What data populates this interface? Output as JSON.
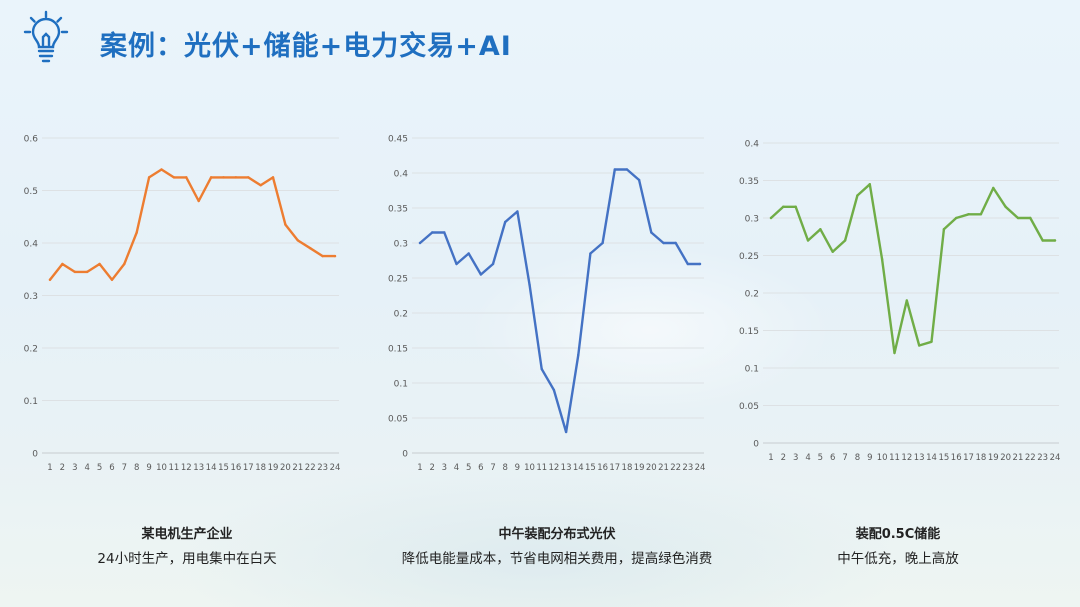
{
  "header": {
    "title": "案例：光伏+储能+电力交易+AI",
    "icon": "lightbulb-idea-icon"
  },
  "colors": {
    "title": "#1f6fc0",
    "series1": "#ed7d31",
    "series2": "#4472c4",
    "series3": "#70ad47"
  },
  "captions": [
    {
      "title": "某电机生产企业",
      "subtitle": "24小时生产，用电集中在白天"
    },
    {
      "title": "中午装配分布式光伏",
      "subtitle": "降低电能量成本，节省电网相关费用，提高绿色消费"
    },
    {
      "title": "装配0.5C储能",
      "subtitle": "中午低充，晚上高放"
    }
  ],
  "chart_data": [
    {
      "type": "line",
      "title": "",
      "xlabel": "",
      "ylabel": "",
      "grid": true,
      "legend": "none",
      "x": [
        "1",
        "2",
        "3",
        "4",
        "5",
        "6",
        "7",
        "8",
        "9",
        "10",
        "11",
        "12",
        "13",
        "14",
        "15",
        "16",
        "17",
        "18",
        "19",
        "20",
        "21",
        "22",
        "23",
        "24"
      ],
      "ylim": [
        0,
        0.6
      ],
      "yticks": [
        "0",
        "0.1",
        "0.2",
        "0.3",
        "0.4",
        "0.5",
        "0.6"
      ],
      "series": [
        {
          "color": "#ed7d31",
          "values": [
            0.33,
            0.36,
            0.345,
            0.345,
            0.36,
            0.33,
            0.36,
            0.42,
            0.525,
            0.54,
            0.525,
            0.525,
            0.48,
            0.525,
            0.525,
            0.525,
            0.525,
            0.51,
            0.525,
            0.435,
            0.405,
            0.39,
            0.375,
            0.375
          ]
        }
      ]
    },
    {
      "type": "line",
      "title": "",
      "xlabel": "",
      "ylabel": "",
      "grid": true,
      "legend": "none",
      "x": [
        "1",
        "2",
        "3",
        "4",
        "5",
        "6",
        "7",
        "8",
        "9",
        "10",
        "11",
        "12",
        "13",
        "14",
        "15",
        "16",
        "17",
        "18",
        "19",
        "20",
        "21",
        "22",
        "23",
        "24"
      ],
      "ylim": [
        0,
        0.45
      ],
      "yticks": [
        "0",
        "0.05",
        "0.1",
        "0.15",
        "0.2",
        "0.25",
        "0.3",
        "0.35",
        "0.4",
        "0.45"
      ],
      "series": [
        {
          "color": "#4472c4",
          "values": [
            0.3,
            0.315,
            0.315,
            0.27,
            0.285,
            0.255,
            0.27,
            0.33,
            0.345,
            0.24,
            0.12,
            0.09,
            0.03,
            0.14,
            0.285,
            0.3,
            0.405,
            0.405,
            0.39,
            0.315,
            0.3,
            0.3,
            0.27,
            0.27
          ]
        }
      ]
    },
    {
      "type": "line",
      "title": "",
      "xlabel": "",
      "ylabel": "",
      "grid": true,
      "legend": "none",
      "x": [
        "1",
        "2",
        "3",
        "4",
        "5",
        "6",
        "7",
        "8",
        "9",
        "10",
        "11",
        "12",
        "13",
        "14",
        "15",
        "16",
        "17",
        "18",
        "19",
        "20",
        "21",
        "22",
        "23",
        "24"
      ],
      "ylim": [
        0,
        0.4
      ],
      "yticks": [
        "0",
        "0.05",
        "0.1",
        "0.15",
        "0.2",
        "0.25",
        "0.3",
        "0.35",
        "0.4"
      ],
      "series": [
        {
          "color": "#70ad47",
          "values": [
            0.3,
            0.315,
            0.315,
            0.27,
            0.285,
            0.255,
            0.27,
            0.33,
            0.345,
            0.245,
            0.12,
            0.19,
            0.13,
            0.135,
            0.285,
            0.3,
            0.305,
            0.305,
            0.34,
            0.315,
            0.3,
            0.3,
            0.27,
            0.27
          ]
        }
      ]
    }
  ]
}
